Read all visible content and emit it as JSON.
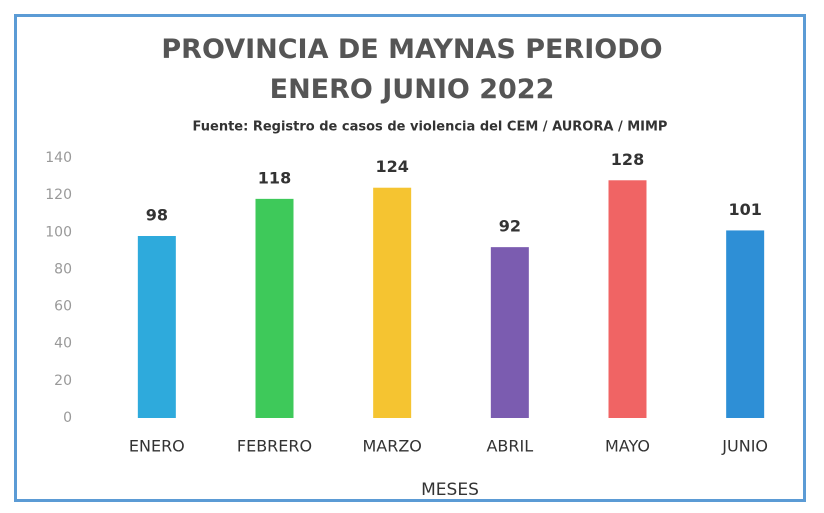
{
  "chart_data": {
    "type": "bar",
    "title": "PROVINCIA DE MAYNAS PERIODO ENERO JUNIO 2022",
    "subtitle": "Fuente: Registro de casos de violencia del CEM / AURORA / MIMP",
    "x_label": "MESES",
    "categories": [
      "ENERO",
      "FEBRERO",
      "MARZO",
      "ABRIL",
      "MAYO",
      "JUNIO"
    ],
    "values": [
      98,
      118,
      124,
      92,
      128,
      101
    ],
    "colors": [
      "#2eaadc",
      "#3ec95a",
      "#f5c431",
      "#7b5cb0",
      "#f06464",
      "#2e8fd6"
    ],
    "ylim": [
      0,
      140
    ],
    "yticks": [
      0,
      20,
      40,
      60,
      80,
      100,
      120,
      140
    ],
    "grid": false
  }
}
